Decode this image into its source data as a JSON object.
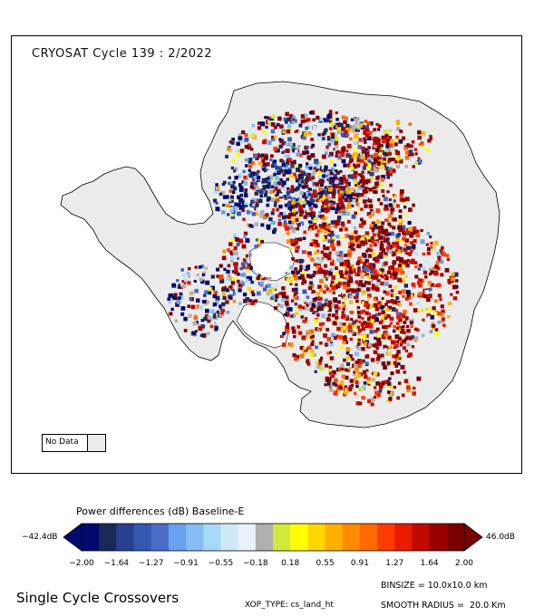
{
  "map": {
    "title": "CRYOSAT Cycle 139 : 2/2022",
    "no_data_label": "No Data",
    "no_data_color": "#ebebeb",
    "land_color": "#ebebeb"
  },
  "colorbar": {
    "title": "Power differences (dB) Baseline-E",
    "min_label": "−42.4dB",
    "max_label": "46.0dB",
    "ticks": [
      "−2.00",
      "−1.64",
      "−1.27",
      "−0.91",
      "−0.55",
      "−0.18",
      "0.18",
      "0.55",
      "0.91",
      "1.27",
      "1.64",
      "2.00"
    ],
    "colors": [
      "#000a6e",
      "#182a55",
      "#28408f",
      "#3358b0",
      "#4a6cc8",
      "#6aa0ec",
      "#88bdf2",
      "#a8d8f7",
      "#cde9f8",
      "#e8f2fa",
      "#b0b0b0",
      "#d2e83a",
      "#ffff00",
      "#ffd700",
      "#ffb000",
      "#ff8c00",
      "#ff6a00",
      "#ff3c00",
      "#e81a00",
      "#c00a00",
      "#9a0000",
      "#7a0000"
    ]
  },
  "footer": {
    "title": "Single Cycle Crossovers",
    "binsize": "BINSIZE = 10.0x10.0 km",
    "xop_type": "XOP_TYPE: cs_land_ht",
    "smooth_radius": "SMOOTH RADIUS =  20.0 Km"
  }
}
